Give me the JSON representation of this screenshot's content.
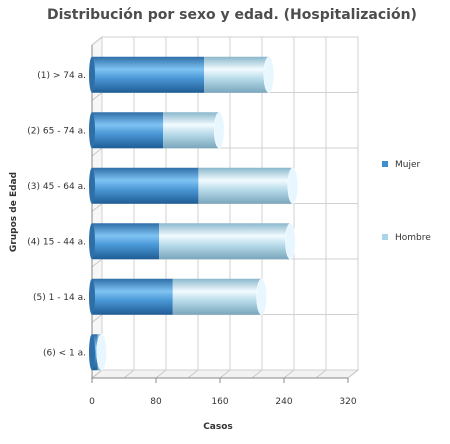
{
  "chart_data": {
    "type": "bar",
    "orientation": "horizontal",
    "stacked": true,
    "title": "Distribución por sexo y edad. (Hospitalización)",
    "xlabel": "Casos",
    "ylabel": "Grupos de Edad",
    "xlim": [
      0,
      320
    ],
    "xticks": [
      "0",
      "80",
      "160",
      "240",
      "320"
    ],
    "categories": [
      "(1) > 74 a.",
      "(2) 65 - 74 a.",
      "(3) 45 - 64 a.",
      "(4) 15 - 44 a.",
      "(5) 1 - 14 a.",
      "(6) < 1 a."
    ],
    "series": [
      {
        "name": "Mujer",
        "values": [
          140,
          89,
          133,
          84,
          101,
          7
        ],
        "color": "#3f8fcf"
      },
      {
        "name": "Hombre",
        "values": [
          81,
          70,
          118,
          164,
          111,
          5
        ],
        "color": "#a9d4ea"
      }
    ],
    "grid": true,
    "legend": "right",
    "style": "3d-cylinder"
  }
}
